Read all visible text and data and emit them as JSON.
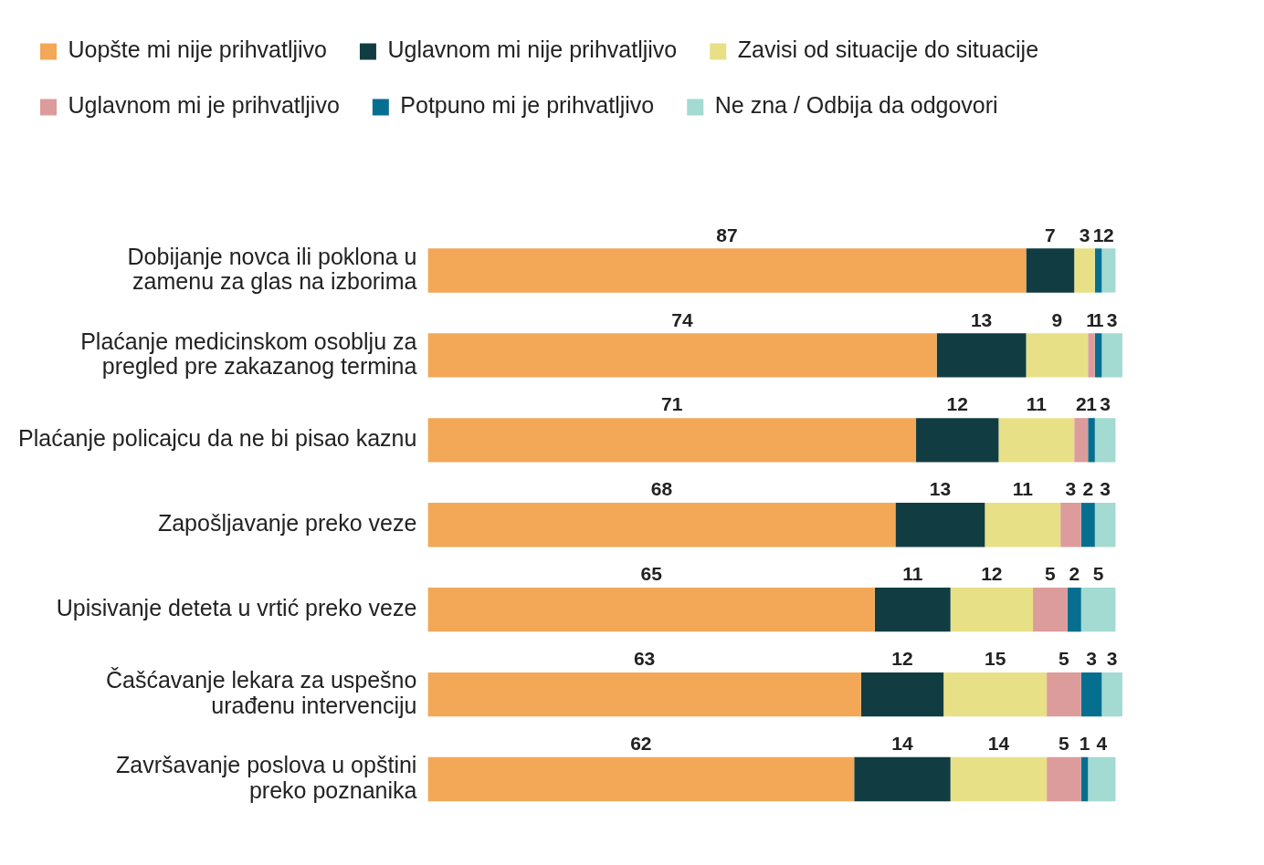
{
  "chart_data": {
    "type": "bar",
    "orientation": "horizontal",
    "stacked": true,
    "data_labels": true,
    "legend": "top",
    "grid": false,
    "categories": [
      "Dobijanje novca ili poklona u zamenu za glas na izborima",
      "Plaćanje medicinskom osoblju za pregled pre zakazanog termina",
      "Plaćanje policajcu da ne bi pisao kaznu",
      "Zapošljavanje preko veze",
      "Upisivanje deteta u vrtić preko veze",
      "Čašćavanje lekara za uspešno urađenu intervenciju",
      "Završavanje poslova u opštini preko poznanika"
    ],
    "series": [
      {
        "name": "Uopšte mi nije prihvatljivo",
        "color": "#f2a857",
        "values": [
          87,
          74,
          71,
          68,
          65,
          63,
          62
        ]
      },
      {
        "name": "Uglavnom mi nije prihvatljivo",
        "color": "#113d42",
        "values": [
          7,
          13,
          12,
          13,
          11,
          12,
          14
        ]
      },
      {
        "name": "Zavisi od situacije do situacije",
        "color": "#e8e087",
        "values": [
          3,
          9,
          11,
          11,
          12,
          15,
          14
        ]
      },
      {
        "name": "Uglavnom mi je prihvatljivo",
        "color": "#dc9c9c",
        "values": [
          null,
          1,
          2,
          3,
          5,
          5,
          5
        ]
      },
      {
        "name": "Potpuno mi je prihvatljivo",
        "color": "#066f8f",
        "values": [
          1,
          1,
          1,
          2,
          2,
          3,
          1
        ]
      },
      {
        "name": "Ne zna / Odbija da odgovori",
        "color": "#a3dad1",
        "values": [
          2,
          3,
          3,
          3,
          5,
          3,
          4
        ]
      }
    ]
  }
}
